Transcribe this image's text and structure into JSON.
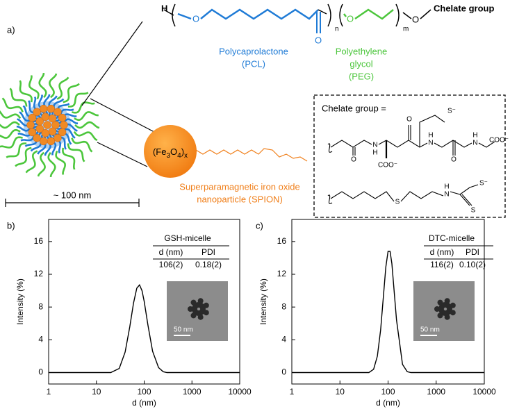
{
  "panel_label": "a)",
  "polymer": {
    "h": "H",
    "o1": "O",
    "o_carbonyl": "O",
    "n": "n",
    "o2": "O",
    "m": "m",
    "o3": "O",
    "end": "Chelate group",
    "pcl_label": [
      "Polycaprolactone",
      "(PCL)"
    ],
    "peg_label": [
      "Polyethylene",
      "glycol",
      "(PEG)"
    ]
  },
  "spion": {
    "core": [
      "(Fe",
      "3",
      "O",
      "4",
      ")",
      "x"
    ],
    "label": [
      "Superparamagnetic iron oxide",
      "nanoparticle (SPION)"
    ]
  },
  "scale_bar": "~ 100 nm",
  "chelate_box": {
    "title": "Chelate group =",
    "gsh_atoms": [
      "O",
      "N",
      "H",
      "COO⁻",
      "O",
      "N",
      "H",
      "S⁻",
      "O",
      "N",
      "H",
      "COO⁻"
    ],
    "dtc_atoms": [
      "S",
      "N",
      "H",
      "S⁻",
      "S"
    ]
  },
  "chart_data": [
    {
      "type": "line",
      "panel": "b)",
      "x_label": "d (nm)",
      "y_label": "Intensity (%)",
      "xscale": "log",
      "xlim": [
        1,
        10000
      ],
      "xticks": [
        1,
        10,
        100,
        1000,
        10000
      ],
      "ylim": [
        -1.4,
        18.7
      ],
      "yticks": [
        0,
        4,
        8,
        12,
        16
      ],
      "x": [
        1,
        10,
        20,
        30,
        40,
        50,
        60,
        70,
        80,
        90,
        100,
        120,
        150,
        200,
        250,
        300,
        400,
        1000,
        10000
      ],
      "values": [
        0,
        0,
        0,
        0.5,
        2.5,
        5.6,
        8.5,
        10.3,
        10.7,
        10,
        8.7,
        5.8,
        2.6,
        0.6,
        0.1,
        0,
        0,
        0,
        0
      ],
      "color": "#000000",
      "inset": {
        "title": "GSH-micelle",
        "header": [
          "d (nm)",
          "PDI"
        ],
        "row": [
          "106(2)",
          "0.18(2)"
        ],
        "scale_label": "50 nm"
      }
    },
    {
      "type": "line",
      "panel": "c)",
      "x_label": "d (nm)",
      "y_label": "Intensity (%)",
      "xscale": "log",
      "xlim": [
        1,
        10000
      ],
      "xticks": [
        1,
        10,
        100,
        1000,
        10000
      ],
      "ylim": [
        -1.4,
        18.7
      ],
      "yticks": [
        0,
        4,
        8,
        12,
        16
      ],
      "x": [
        1,
        10,
        40,
        50,
        60,
        70,
        80,
        90,
        100,
        110,
        120,
        150,
        200,
        250,
        300,
        1000,
        10000
      ],
      "values": [
        0,
        0,
        0,
        0.4,
        2,
        5.2,
        9.3,
        12.9,
        14.8,
        14.8,
        13.3,
        6.4,
        1,
        0.1,
        0,
        0,
        0
      ],
      "color": "#000000",
      "inset": {
        "title": "DTC-micelle",
        "header": [
          "d (nm)",
          "PDI"
        ],
        "row": [
          "116(2)",
          "0.10(2)"
        ],
        "scale_label": "50 nm"
      }
    }
  ]
}
